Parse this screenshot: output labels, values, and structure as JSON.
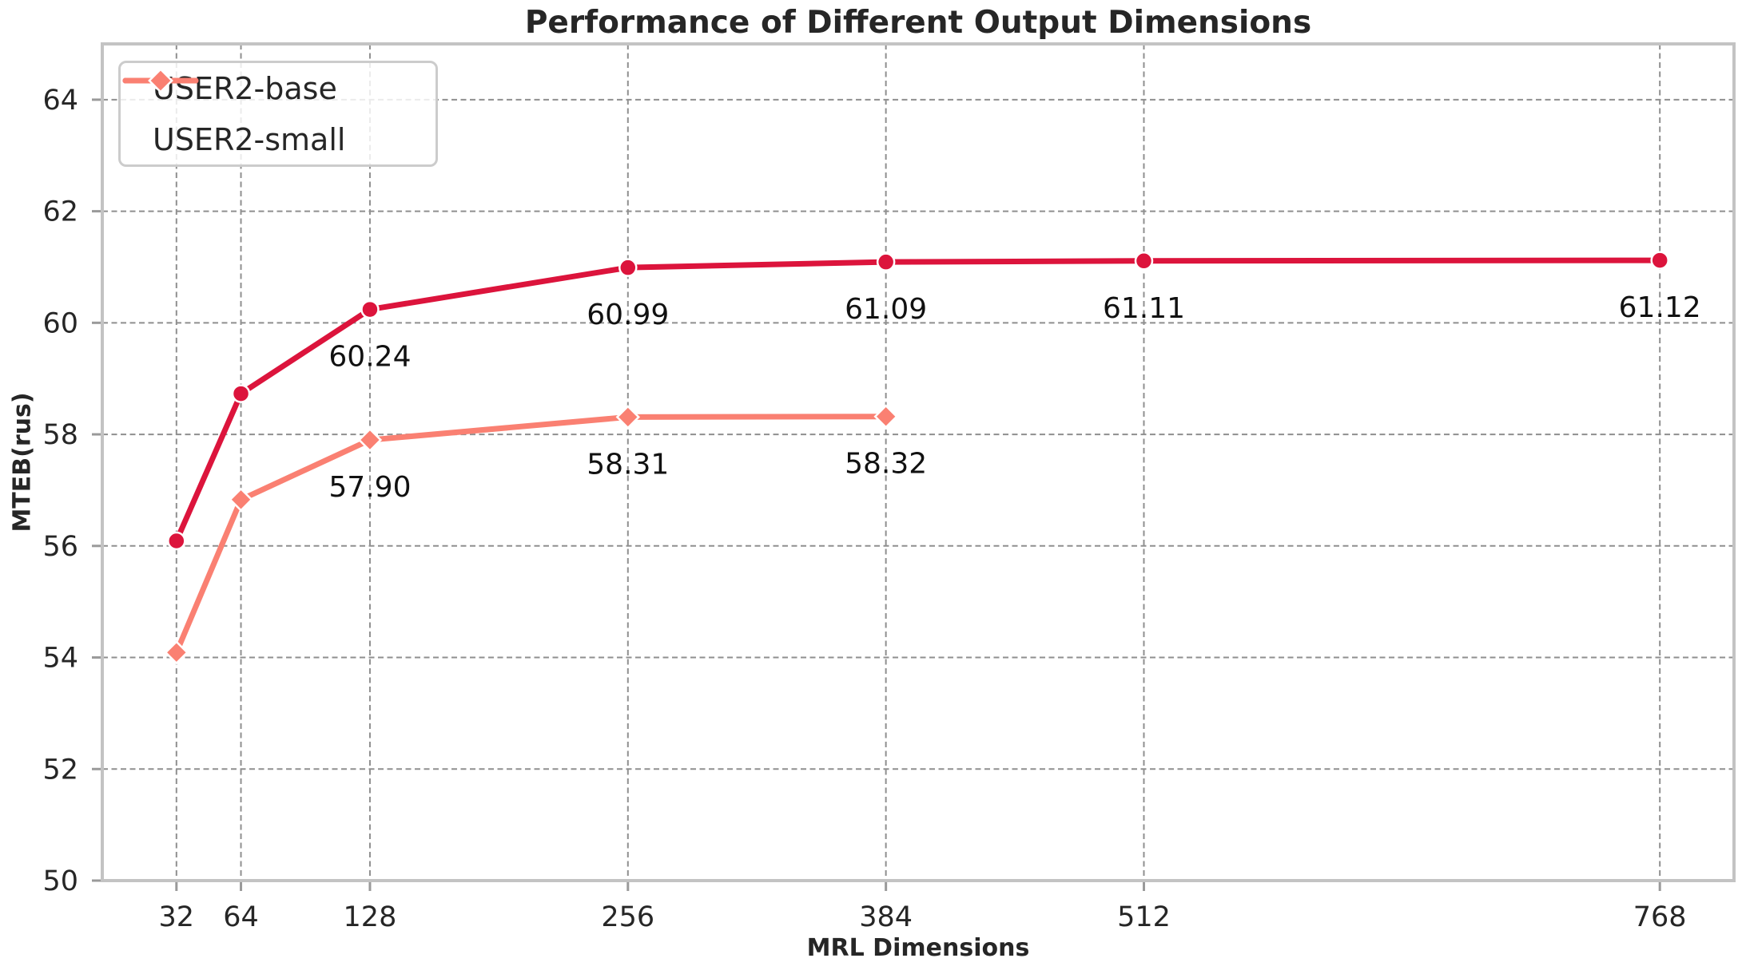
{
  "chart_data": {
    "type": "line",
    "title": "Performance of Different Output Dimensions",
    "xlabel": "MRL Dimensions",
    "ylabel": "MTEB(rus)",
    "xlim": [
      -4.8,
      804.8
    ],
    "ylim": [
      50,
      65
    ],
    "xticks": [
      32,
      64,
      128,
      256,
      384,
      512,
      768
    ],
    "yticks": [
      50,
      52,
      54,
      56,
      58,
      60,
      62,
      64
    ],
    "grid": true,
    "grid_style": "dashed",
    "legend_position": "upper-left",
    "series": [
      {
        "name": "USER2-base",
        "color": "#DC143C",
        "marker": "circle",
        "x": [
          32,
          64,
          128,
          256,
          384,
          512,
          768
        ],
        "y": [
          56.09,
          58.73,
          60.24,
          60.99,
          61.09,
          61.11,
          61.12
        ],
        "point_labels": [
          "",
          "",
          "60.24",
          "60.99",
          "61.09",
          "61.11",
          "61.12"
        ]
      },
      {
        "name": "USER2-small",
        "color": "#FA8072",
        "marker": "diamond",
        "x": [
          32,
          64,
          128,
          256,
          384
        ],
        "y": [
          54.09,
          56.83,
          57.9,
          58.31,
          58.32
        ],
        "point_labels": [
          "",
          "",
          "57.90",
          "58.31",
          "58.32"
        ]
      }
    ]
  }
}
